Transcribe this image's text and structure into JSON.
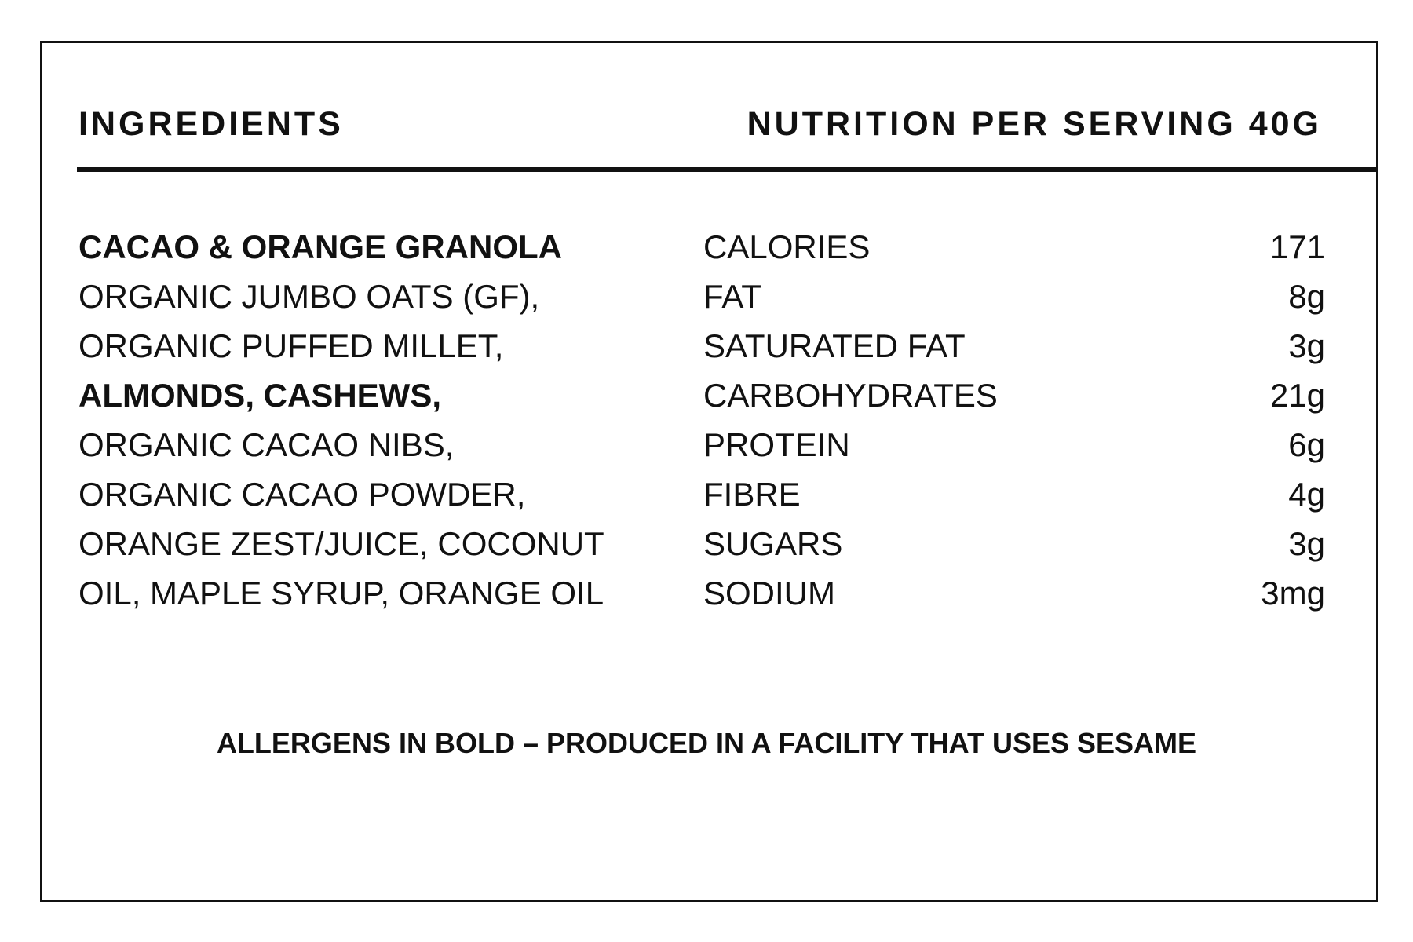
{
  "headers": {
    "ingredients": "INGREDIENTS",
    "nutrition": "NUTRITION PER SERVING 40G"
  },
  "ingredients": [
    {
      "text": "CACAO & ORANGE GRANOLA",
      "bold": true
    },
    {
      "text": "ORGANIC JUMBO OATS (GF),",
      "bold": false
    },
    {
      "text": "ORGANIC PUFFED MILLET,",
      "bold": false
    },
    {
      "text": "ALMONDS, CASHEWS,",
      "bold": true
    },
    {
      "text": "ORGANIC CACAO NIBS,",
      "bold": false
    },
    {
      "text": "ORGANIC CACAO POWDER,",
      "bold": false
    },
    {
      "text": "ORANGE ZEST/JUICE, COCONUT",
      "bold": false
    },
    {
      "text": "OIL, MAPLE SYRUP, ORANGE OIL",
      "bold": false
    }
  ],
  "nutrition": [
    {
      "label": "CALORIES",
      "value": "171"
    },
    {
      "label": "FAT",
      "value": "8g"
    },
    {
      "label": "SATURATED FAT",
      "value": "3g"
    },
    {
      "label": "CARBOHYDRATES",
      "value": "21g"
    },
    {
      "label": "PROTEIN",
      "value": "6g"
    },
    {
      "label": "FIBRE",
      "value": "4g"
    },
    {
      "label": "SUGARS",
      "value": "3g"
    },
    {
      "label": "SODIUM",
      "value": "3mg"
    }
  ],
  "allergen_note": "ALLERGENS IN BOLD – PRODUCED IN A FACILITY THAT USES SESAME",
  "colors": {
    "text": "#111111",
    "background": "#ffffff"
  }
}
